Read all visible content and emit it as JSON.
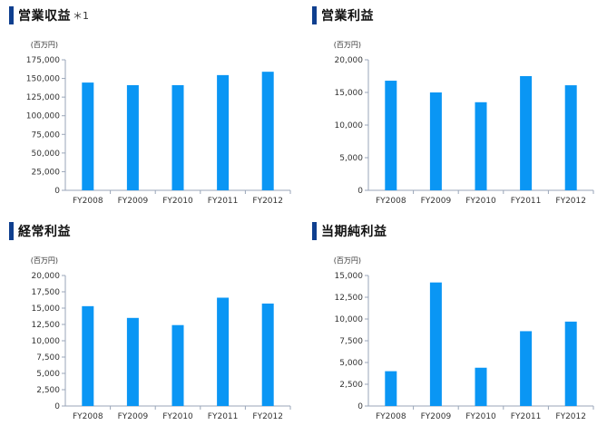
{
  "chart_data": [
    {
      "type": "bar",
      "title": "営業収益",
      "title_note": "＊1",
      "unit": "(百万円)",
      "categories": [
        "FY2008",
        "FY2009",
        "FY2010",
        "FY2011",
        "FY2012"
      ],
      "values": [
        144500,
        141000,
        141000,
        154500,
        159000
      ],
      "ylim": [
        0,
        175000
      ],
      "yticks": [
        0,
        25000,
        50000,
        75000,
        100000,
        125000,
        150000,
        175000
      ],
      "bar_color": "#0a96f4"
    },
    {
      "type": "bar",
      "title": "営業利益",
      "title_note": "",
      "unit": "(百万円)",
      "categories": [
        "FY2008",
        "FY2009",
        "FY2010",
        "FY2011",
        "FY2012"
      ],
      "values": [
        16800,
        15000,
        13500,
        17500,
        16100
      ],
      "ylim": [
        0,
        20000
      ],
      "yticks": [
        0,
        5000,
        10000,
        15000,
        20000
      ],
      "bar_color": "#0a96f4"
    },
    {
      "type": "bar",
      "title": "経常利益",
      "title_note": "",
      "unit": "(百万円)",
      "categories": [
        "FY2008",
        "FY2009",
        "FY2010",
        "FY2011",
        "FY2012"
      ],
      "values": [
        15300,
        13500,
        12400,
        16600,
        15700
      ],
      "ylim": [
        0,
        20000
      ],
      "yticks": [
        0,
        2500,
        5000,
        7500,
        10000,
        12500,
        15000,
        17500,
        20000
      ],
      "bar_color": "#0a96f4"
    },
    {
      "type": "bar",
      "title": "当期純利益",
      "title_note": "",
      "unit": "(百万円)",
      "categories": [
        "FY2008",
        "FY2009",
        "FY2010",
        "FY2011",
        "FY2012"
      ],
      "values": [
        4000,
        14200,
        4400,
        8600,
        9700
      ],
      "ylim": [
        0,
        15000
      ],
      "yticks": [
        0,
        2500,
        5000,
        7500,
        10000,
        12500,
        15000
      ],
      "bar_color": "#0a96f4"
    }
  ]
}
